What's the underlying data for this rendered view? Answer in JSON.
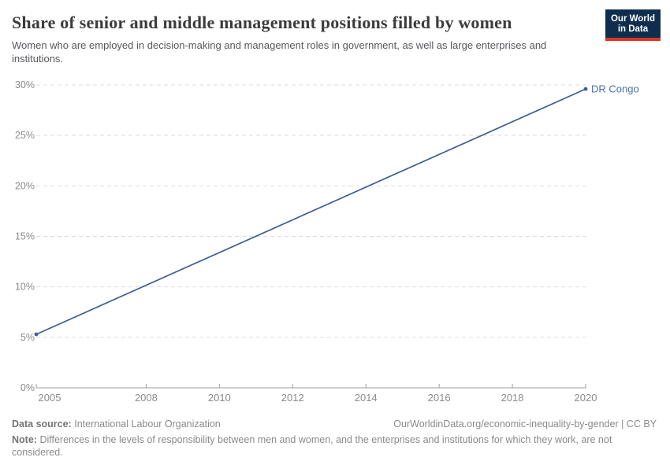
{
  "header": {
    "title": "Share of senior and middle management positions filled by women",
    "subtitle": "Women who are employed in decision-making and management roles in government, as well as large enterprises and institutions.",
    "logo": {
      "line1": "Our World",
      "line2": "in Data",
      "bg_color": "#0f2e4f",
      "accent_color": "#dc3521"
    }
  },
  "chart_data": {
    "type": "line",
    "title": "Share of senior and middle management positions filled by women",
    "subtitle": "Women who are employed in decision-making and management roles in government, as well as large enterprises and institutions.",
    "series": [
      {
        "name": "DR Congo",
        "color": "#3d5e95",
        "label_color": "#4a6fb1",
        "points": [
          [
            2005,
            5.3
          ],
          [
            2020,
            29.6
          ]
        ]
      }
    ],
    "xlim": [
      2005,
      2020
    ],
    "ylim": [
      0,
      30
    ],
    "xticks": [
      2005,
      2008,
      2010,
      2012,
      2014,
      2016,
      2018,
      2020
    ],
    "yticks": [
      0,
      5,
      10,
      15,
      20,
      25,
      30
    ],
    "ytick_suffix": "%",
    "xlabel": "",
    "ylabel": "",
    "grid": "horizontal-dashed",
    "gridline_color": "#dedede",
    "axis_color": "#9e9e9e",
    "tick_label_color": "#8b8b8b",
    "legend": "entity label at line end"
  },
  "footer": {
    "data_source_label": "Data source:",
    "data_source_value": "International Labour Organization",
    "link_text": "OurWorldinData.org/economic-inequality-by-gender | CC BY",
    "note_label": "Note:",
    "note_text": "Differences in the levels of responsibility between men and women, and the enterprises and institutions for which they work, are not considered."
  }
}
